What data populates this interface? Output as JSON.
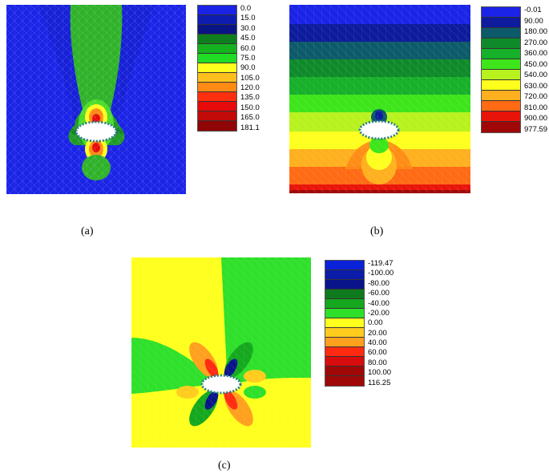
{
  "panels": [
    {
      "caption": "(a)",
      "legend": {
        "labels": [
          "0.0",
          "15.0",
          "30.0",
          "45.0",
          "60.0",
          "75.0",
          "90.0",
          "105.0",
          "120.0",
          "135.0",
          "150.0",
          "165.0",
          "181.1"
        ],
        "colors": [
          "#1a23e6",
          "#0f1cb0",
          "#0a1585",
          "#0f7f1e",
          "#15b21f",
          "#20dc25",
          "#ffff1e",
          "#ffc01e",
          "#ff8a14",
          "#ff3010",
          "#e60a0a",
          "#c20a0a",
          "#900505"
        ]
      }
    },
    {
      "caption": "(b)",
      "legend": {
        "labels": [
          "-0.01",
          "90.00",
          "180.00",
          "270.00",
          "360.00",
          "450.00",
          "540.00",
          "630.00",
          "720.00",
          "810.00",
          "900.00",
          "977.59"
        ],
        "colors": [
          "#1a23e6",
          "#0d1b9c",
          "#0c5a6a",
          "#0f8a2a",
          "#17b02a",
          "#3de51a",
          "#b8f21e",
          "#ffff1e",
          "#ffb01e",
          "#ff6a14",
          "#e8140a",
          "#a00808"
        ]
      }
    },
    {
      "caption": "(c)",
      "legend": {
        "labels": [
          "-119.47",
          "-100.00",
          "-80.00",
          "-60.00",
          "-40.00",
          "-20.00",
          "0.00",
          "20.00",
          "40.00",
          "60.00",
          "80.00",
          "100.00",
          "116.25"
        ],
        "colors": [
          "#0a22d8",
          "#0a1ca8",
          "#0a148a",
          "#0f7a1e",
          "#15a81e",
          "#2ee02a",
          "#ffff1e",
          "#ffcc1e",
          "#ffa01e",
          "#ff2a10",
          "#d80c0c",
          "#a00808",
          "#a00808"
        ]
      }
    }
  ]
}
